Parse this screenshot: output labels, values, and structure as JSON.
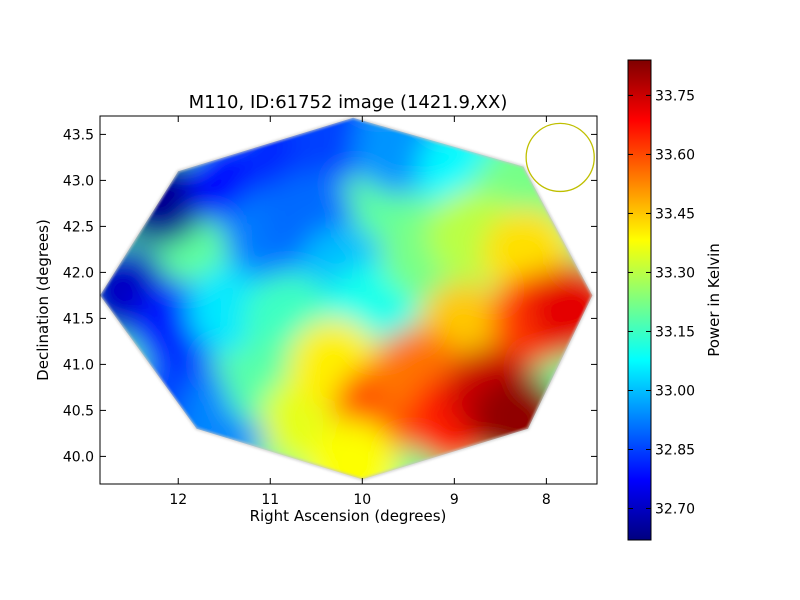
{
  "chart_data": {
    "type": "heatmap",
    "title": "M110, ID:61752 image (1421.9,XX)",
    "xlabel": "Right Ascension (degrees)",
    "ylabel": "Declination (degrees)",
    "xlim": [
      12.85,
      7.45
    ],
    "ylim": [
      39.7,
      43.7
    ],
    "x_inverted": true,
    "x_ticks": [
      12,
      11,
      10,
      9,
      8
    ],
    "y_ticks": [
      40.0,
      40.5,
      41.0,
      41.5,
      42.0,
      42.5,
      43.0,
      43.5
    ],
    "colorbar": {
      "label": "Power in Kelvin",
      "colormap": "jet",
      "range": [
        32.62,
        33.84
      ],
      "ticks": [
        32.7,
        32.85,
        33.0,
        33.15,
        33.3,
        33.45,
        33.6,
        33.75
      ]
    },
    "footprint_outline": [
      [
        10.1,
        43.68
      ],
      [
        8.25,
        43.15
      ],
      [
        7.5,
        41.75
      ],
      [
        8.2,
        40.3
      ],
      [
        10.0,
        39.75
      ],
      [
        11.8,
        40.3
      ],
      [
        12.85,
        41.75
      ],
      [
        12.0,
        43.1
      ]
    ],
    "field_samples": [
      {
        "ra": 12.2,
        "dec": 42.8,
        "value": 32.64
      },
      {
        "ra": 11.4,
        "dec": 43.0,
        "value": 32.78
      },
      {
        "ra": 10.9,
        "dec": 43.3,
        "value": 32.82
      },
      {
        "ra": 10.3,
        "dec": 43.5,
        "value": 32.85
      },
      {
        "ra": 9.6,
        "dec": 43.35,
        "value": 32.95
      },
      {
        "ra": 8.9,
        "dec": 43.1,
        "value": 33.07
      },
      {
        "ra": 8.3,
        "dec": 42.9,
        "value": 33.22
      },
      {
        "ra": 12.6,
        "dec": 41.8,
        "value": 32.7
      },
      {
        "ra": 12.0,
        "dec": 41.4,
        "value": 32.8
      },
      {
        "ra": 12.0,
        "dec": 40.6,
        "value": 32.85
      },
      {
        "ra": 11.5,
        "dec": 40.4,
        "value": 32.93
      },
      {
        "ra": 11.4,
        "dec": 41.6,
        "value": 33.05
      },
      {
        "ra": 11.0,
        "dec": 42.4,
        "value": 32.92
      },
      {
        "ra": 10.6,
        "dec": 42.6,
        "value": 32.9
      },
      {
        "ra": 10.2,
        "dec": 42.0,
        "value": 33.0
      },
      {
        "ra": 10.8,
        "dec": 41.5,
        "value": 33.15
      },
      {
        "ra": 9.9,
        "dec": 41.6,
        "value": 33.1
      },
      {
        "ra": 9.3,
        "dec": 42.2,
        "value": 33.22
      },
      {
        "ra": 8.8,
        "dec": 42.4,
        "value": 33.3
      },
      {
        "ra": 8.2,
        "dec": 42.2,
        "value": 33.42
      },
      {
        "ra": 8.9,
        "dec": 41.4,
        "value": 33.45
      },
      {
        "ra": 8.1,
        "dec": 41.5,
        "value": 33.62
      },
      {
        "ra": 7.7,
        "dec": 41.6,
        "value": 33.72
      },
      {
        "ra": 11.0,
        "dec": 40.8,
        "value": 33.18
      },
      {
        "ra": 10.6,
        "dec": 40.4,
        "value": 33.35
      },
      {
        "ra": 10.3,
        "dec": 41.0,
        "value": 33.4
      },
      {
        "ra": 9.8,
        "dec": 40.5,
        "value": 33.6
      },
      {
        "ra": 9.4,
        "dec": 40.9,
        "value": 33.55
      },
      {
        "ra": 9.0,
        "dec": 40.4,
        "value": 33.65
      },
      {
        "ra": 8.6,
        "dec": 40.7,
        "value": 33.75
      },
      {
        "ra": 8.3,
        "dec": 40.4,
        "value": 33.82
      },
      {
        "ra": 10.1,
        "dec": 39.9,
        "value": 33.38
      }
    ],
    "beam_circle": {
      "ra": 7.85,
      "dec": 43.25,
      "radius_deg": 0.37,
      "color": "#bfbf00"
    }
  }
}
